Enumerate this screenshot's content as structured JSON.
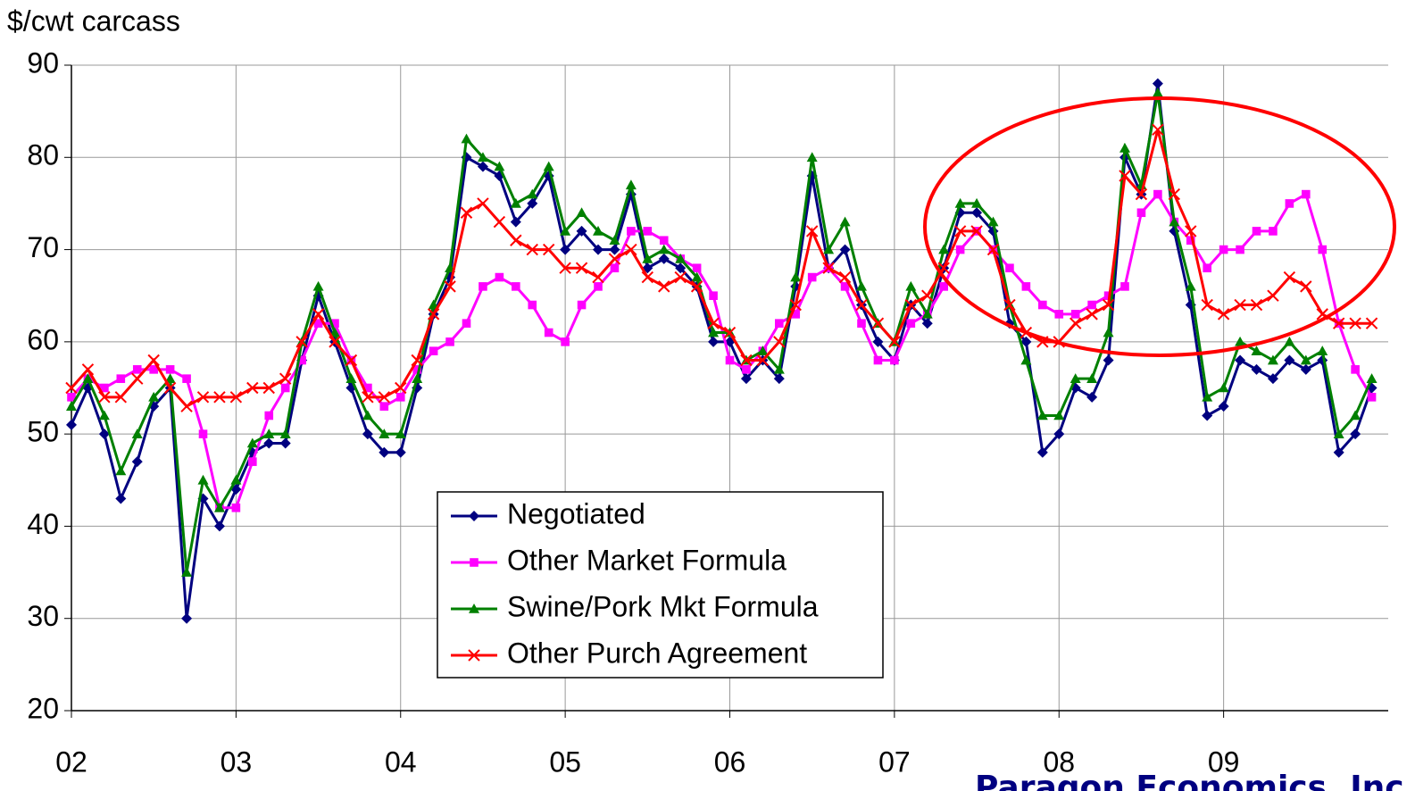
{
  "chart_data": {
    "type": "line",
    "y_label": "$/cwt carcass",
    "annotation": "Paragon Economics, Inc.",
    "x": [
      2002.0,
      2002.1,
      2002.2,
      2002.3,
      2002.4,
      2002.5,
      2002.6,
      2002.7,
      2002.8,
      2002.9,
      2003.0,
      2003.1,
      2003.2,
      2003.3,
      2003.4,
      2003.5,
      2003.6,
      2003.7,
      2003.8,
      2003.9,
      2004.0,
      2004.1,
      2004.2,
      2004.3,
      2004.4,
      2004.5,
      2004.6,
      2004.7,
      2004.8,
      2004.9,
      2005.0,
      2005.1,
      2005.2,
      2005.3,
      2005.4,
      2005.5,
      2005.6,
      2005.7,
      2005.8,
      2005.9,
      2006.0,
      2006.1,
      2006.2,
      2006.3,
      2006.4,
      2006.5,
      2006.6,
      2006.7,
      2006.8,
      2006.9,
      2007.0,
      2007.1,
      2007.2,
      2007.3,
      2007.4,
      2007.5,
      2007.6,
      2007.7,
      2007.8,
      2007.9,
      2008.0,
      2008.1,
      2008.2,
      2008.3,
      2008.4,
      2008.5,
      2008.6,
      2008.7,
      2008.8,
      2008.9,
      2009.0,
      2009.1,
      2009.2,
      2009.3,
      2009.4,
      2009.5,
      2009.6,
      2009.7,
      2009.8,
      2009.9
    ],
    "series": [
      {
        "name": "Negotiated",
        "color": "#000080",
        "marker": "diamond",
        "values": [
          51,
          55,
          50,
          43,
          47,
          53,
          55,
          30,
          43,
          40,
          44,
          48,
          49,
          49,
          58,
          65,
          60,
          55,
          50,
          48,
          48,
          55,
          63,
          67,
          80,
          79,
          78,
          73,
          75,
          78,
          70,
          72,
          70,
          70,
          76,
          68,
          69,
          68,
          66,
          60,
          60,
          56,
          58,
          56,
          66,
          78,
          68,
          70,
          64,
          60,
          58,
          64,
          62,
          68,
          74,
          74,
          72,
          62,
          60,
          48,
          50,
          55,
          54,
          58,
          80,
          76,
          88,
          72,
          64,
          52,
          53,
          58,
          57,
          56,
          58,
          57,
          58,
          48,
          50,
          55
        ]
      },
      {
        "name": "Other Market Formula",
        "color": "#ff00ff",
        "marker": "square",
        "values": [
          54,
          56,
          55,
          56,
          57,
          57,
          57,
          56,
          50,
          42,
          42,
          47,
          52,
          55,
          58,
          62,
          62,
          58,
          55,
          53,
          54,
          57,
          59,
          60,
          62,
          66,
          67,
          66,
          64,
          61,
          60,
          64,
          66,
          68,
          72,
          72,
          71,
          69,
          68,
          65,
          58,
          57,
          59,
          62,
          63,
          67,
          68,
          66,
          62,
          58,
          58,
          62,
          63,
          66,
          70,
          72,
          70,
          68,
          66,
          64,
          63,
          63,
          64,
          65,
          66,
          74,
          76,
          73,
          71,
          68,
          70,
          70,
          72,
          72,
          75,
          76,
          70,
          62,
          57,
          54
        ]
      },
      {
        "name": "Swine/Pork Mkt Formula",
        "color": "#008000",
        "marker": "triangle",
        "values": [
          53,
          56,
          52,
          46,
          50,
          54,
          56,
          35,
          45,
          42,
          45,
          49,
          50,
          50,
          60,
          66,
          61,
          56,
          52,
          50,
          50,
          56,
          64,
          68,
          82,
          80,
          79,
          75,
          76,
          79,
          72,
          74,
          72,
          71,
          77,
          69,
          70,
          69,
          67,
          61,
          61,
          58,
          59,
          57,
          67,
          80,
          70,
          73,
          66,
          62,
          60,
          66,
          63,
          70,
          75,
          75,
          73,
          64,
          58,
          52,
          52,
          56,
          56,
          61,
          81,
          77,
          87,
          73,
          66,
          54,
          55,
          60,
          59,
          58,
          60,
          58,
          59,
          50,
          52,
          56
        ]
      },
      {
        "name": "Other Purch Agreement",
        "color": "#ff0000",
        "marker": "x",
        "values": [
          55,
          57,
          54,
          54,
          56,
          58,
          55,
          53,
          54,
          54,
          54,
          55,
          55,
          56,
          60,
          63,
          60,
          58,
          54,
          54,
          55,
          58,
          63,
          66,
          74,
          75,
          73,
          71,
          70,
          70,
          68,
          68,
          67,
          69,
          70,
          67,
          66,
          67,
          66,
          62,
          61,
          58,
          58,
          60,
          64,
          72,
          68,
          67,
          64,
          62,
          60,
          64,
          65,
          68,
          72,
          72,
          70,
          64,
          61,
          60,
          60,
          62,
          63,
          64,
          78,
          76,
          83,
          76,
          72,
          64,
          63,
          64,
          64,
          65,
          67,
          66,
          63,
          62,
          62,
          62
        ]
      }
    ],
    "xlim": [
      2002,
      2010
    ],
    "xticks": [
      {
        "value": 2002,
        "label": "02"
      },
      {
        "value": 2003,
        "label": "03"
      },
      {
        "value": 2004,
        "label": "04"
      },
      {
        "value": 2005,
        "label": "05"
      },
      {
        "value": 2006,
        "label": "06"
      },
      {
        "value": 2007,
        "label": "07"
      },
      {
        "value": 2008,
        "label": "08"
      },
      {
        "value": 2009,
        "label": "09"
      }
    ],
    "ylim": [
      20,
      90
    ],
    "yticks": [
      20,
      30,
      40,
      50,
      60,
      70,
      80,
      90
    ],
    "grid": true
  }
}
